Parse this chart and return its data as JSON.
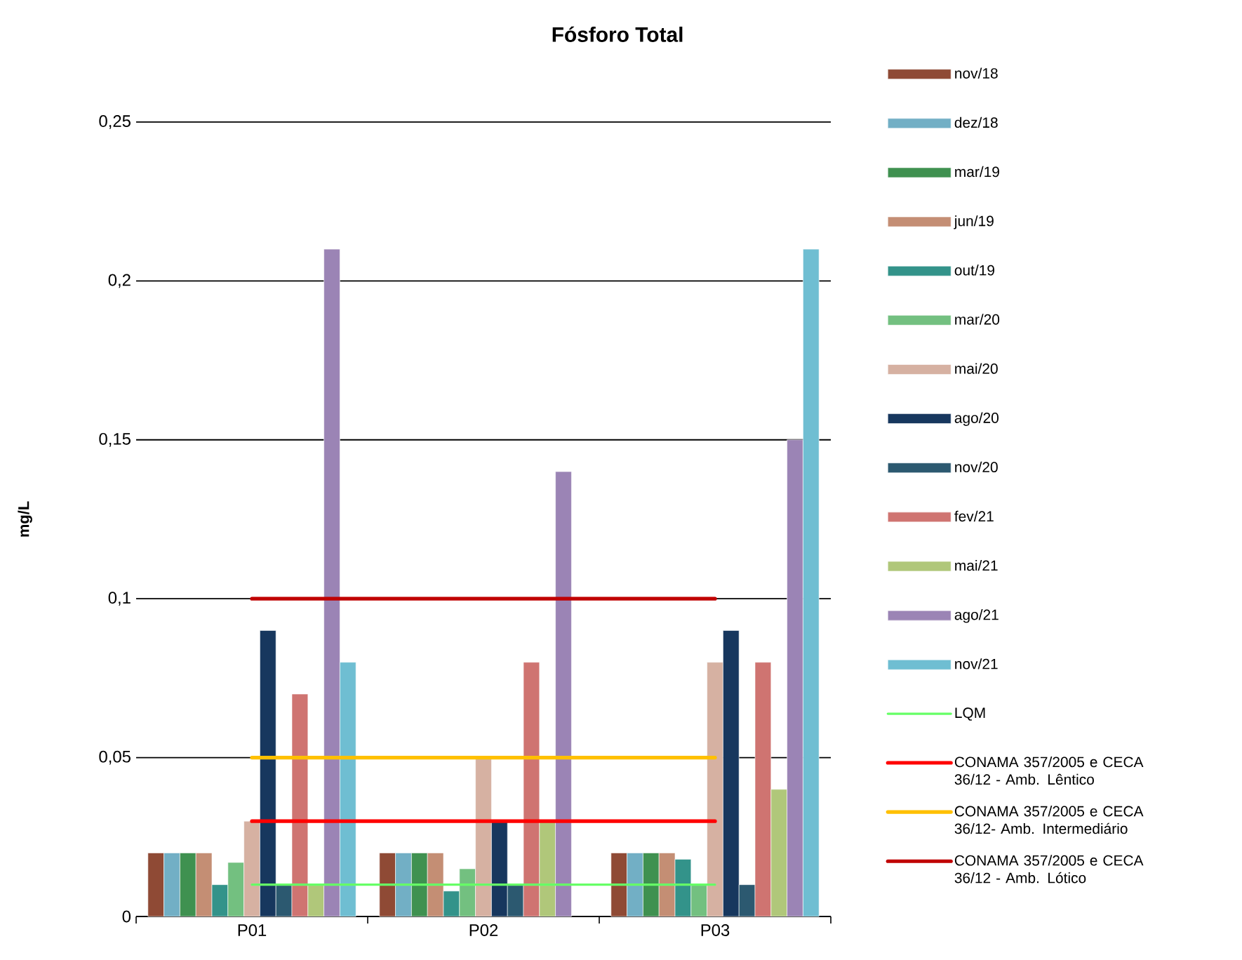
{
  "chart_data": {
    "type": "bar",
    "title": "Fósforo Total",
    "ylabel": "mg/L",
    "categories": [
      "P01",
      "P02",
      "P03"
    ],
    "series": [
      {
        "name": "nov/18",
        "color": "#8f4a35",
        "values": [
          0.02,
          0.02,
          0.02
        ]
      },
      {
        "name": "dez/18",
        "color": "#72afc5",
        "values": [
          0.02,
          0.02,
          0.02
        ]
      },
      {
        "name": "mar/19",
        "color": "#3f9150",
        "values": [
          0.02,
          0.02,
          0.02
        ]
      },
      {
        "name": "jun/19",
        "color": "#c48e74",
        "values": [
          0.02,
          0.02,
          0.02
        ]
      },
      {
        "name": "out/19",
        "color": "#33938a",
        "values": [
          0.01,
          0.008,
          0.018
        ]
      },
      {
        "name": "mar/20",
        "color": "#73c080",
        "values": [
          0.017,
          0.015,
          0.01
        ]
      },
      {
        "name": "mai/20",
        "color": "#d6b1a2",
        "values": [
          0.03,
          0.05,
          0.08
        ]
      },
      {
        "name": "ago/20",
        "color": "#17375e",
        "values": [
          0.09,
          0.03,
          0.09
        ]
      },
      {
        "name": "nov/20",
        "color": "#2c5970",
        "values": [
          0.01,
          0.01,
          0.01
        ]
      },
      {
        "name": "fev/21",
        "color": "#cf7471",
        "values": [
          0.07,
          0.08,
          0.08
        ]
      },
      {
        "name": "mai/21",
        "color": "#b0c77a",
        "values": [
          0.01,
          0.03,
          0.04
        ]
      },
      {
        "name": "ago/21",
        "color": "#9b84b5",
        "values": [
          0.21,
          0.14,
          0.15
        ]
      },
      {
        "name": "nov/21",
        "color": "#6fbed2",
        "values": [
          0.08,
          null,
          0.21
        ]
      },
      {
        "name": "LQM",
        "type": "line",
        "color": "#66ff66",
        "values": [
          0.01,
          0.01,
          0.01
        ]
      },
      {
        "name": "CONAMA 357/2005 e CECA 36/12 - Amb. Lêntico",
        "type": "line",
        "color": "#ff0000",
        "values": [
          0.03,
          0.03,
          0.03
        ]
      },
      {
        "name": "CONAMA 357/2005 e CECA 36/12- Amb. Intermediário",
        "type": "line",
        "color": "#ffc000",
        "values": [
          0.05,
          0.05,
          0.05
        ]
      },
      {
        "name": "CONAMA 357/2005 e CECA 36/12 - Amb. Lótico",
        "type": "line",
        "color": "#c00000",
        "values": [
          0.1,
          0.1,
          0.1
        ]
      }
    ],
    "ylim": [
      0,
      0.25
    ],
    "yticks": [
      0,
      {
        "value": 0.05,
        "label": "0,05"
      },
      {
        "value": 0.1,
        "label": "0,1"
      },
      {
        "value": 0.15,
        "label": "0,15"
      },
      {
        "value": 0.2,
        "label": "0,2"
      },
      {
        "value": 0.25,
        "label": "0,25"
      }
    ],
    "grid": "y",
    "legend": "right"
  }
}
